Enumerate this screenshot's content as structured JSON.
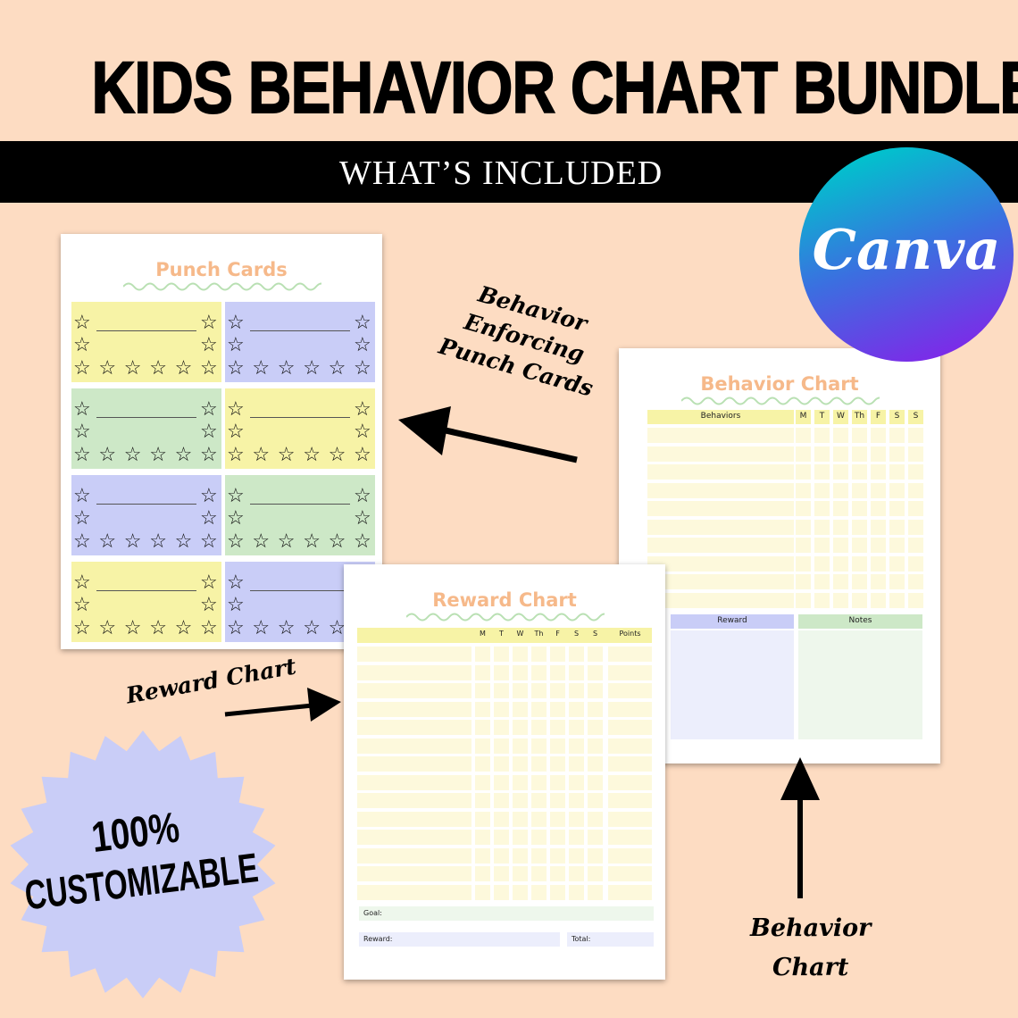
{
  "header": {
    "title": "KIDS BEHAVIOR CHART BUNDLE",
    "subtitle": "WHAT’S INCLUDED"
  },
  "canva_logo": {
    "text": "Canva",
    "colors": [
      "#00c4cc",
      "#3b6fe0",
      "#7d2ae8"
    ]
  },
  "punch_cards": {
    "title": "Punch Cards",
    "card_colors": [
      "#f7f3a6",
      "#c9cdf7",
      "#cde8c7",
      "#f7f3a6",
      "#c9cdf7",
      "#cde8c7",
      "#f7f3a6",
      "#c9cdf7"
    ]
  },
  "behavior_chart": {
    "title": "Behavior Chart",
    "columns": [
      "Behaviors",
      "M",
      "T",
      "W",
      "Th",
      "F",
      "S",
      "S"
    ],
    "reward_label": "Reward",
    "notes_label": "Notes"
  },
  "reward_chart": {
    "title": "Reward Chart",
    "columns": [
      "",
      "M",
      "T",
      "W",
      "Th",
      "F",
      "S",
      "S",
      "Points"
    ],
    "goal_label": "Goal:",
    "reward_label": "Reward:",
    "total_label": "Total:"
  },
  "labels": {
    "punch": "Behavior\nEnforcing\nPunch Cards",
    "reward": "Reward Chart",
    "behavior": "Behavior\nChart"
  },
  "badge": {
    "line1": "100%",
    "line2": "CUSTOMIZABLE",
    "color": "#c9cdf7"
  },
  "colors": {
    "background": "#fddcc2",
    "title_accent": "#f6b98a",
    "yellow": "#f7f3a6",
    "blue": "#c9cdf7",
    "green": "#cde8c7"
  }
}
